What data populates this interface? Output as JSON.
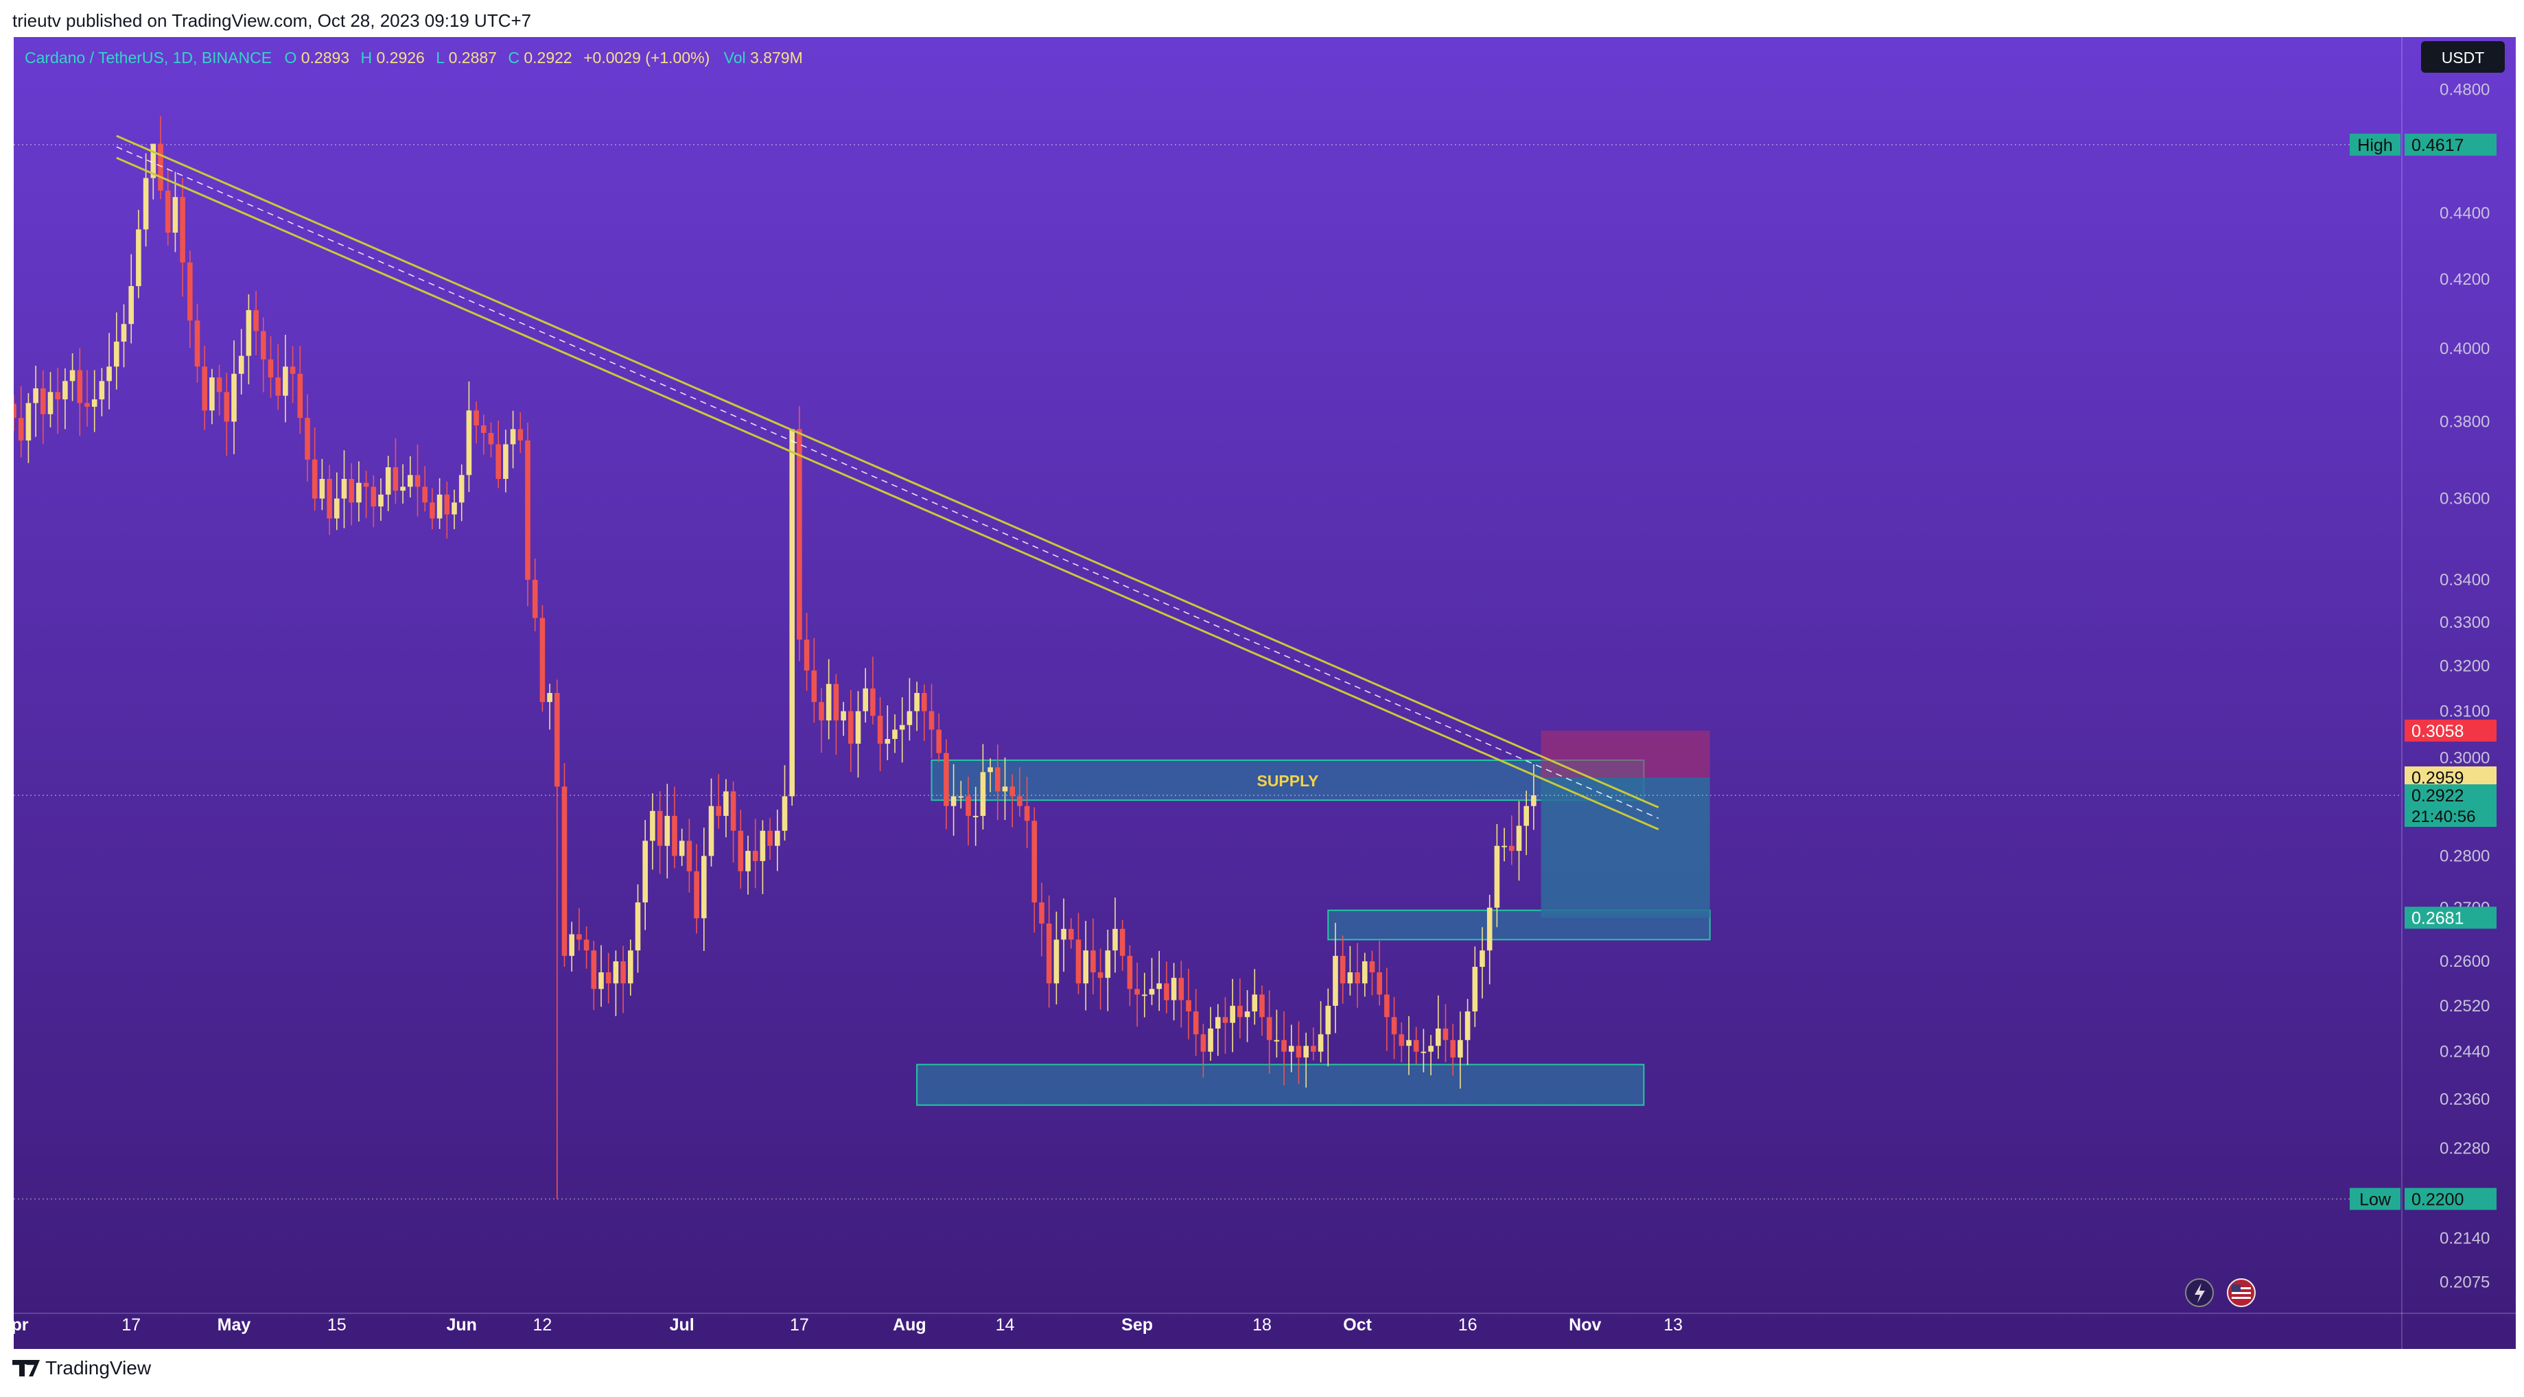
{
  "header": {
    "published_by": "trieutv published on TradingView.com, Oct 28, 2023 09:19 UTC+7"
  },
  "legend": {
    "symbol": "Cardano / TetherUS, 1D, BINANCE",
    "o_label": "O",
    "o_value": "0.2893",
    "h_label": "H",
    "h_value": "0.2926",
    "l_label": "L",
    "l_value": "0.2887",
    "c_label": "C",
    "c_value": "0.2922",
    "change": "+0.0029 (+1.00%)",
    "vol_label": "Vol",
    "vol_value": "3.879M"
  },
  "currency_button": "USDT",
  "footer": {
    "brand": "TradingView"
  },
  "colors": {
    "bg_top": "#6a3bd0",
    "bg_bottom": "#3e1c7a",
    "up": "#f5e08a",
    "down": "#ef5350",
    "trendline": "#c9c93a",
    "zone_fill": "#2e6b9c",
    "zone_stroke": "#22c9a0",
    "target_fill": "#2f6c9c",
    "stop_fill": "#b0306a",
    "price_tag_green": "#22ab94",
    "price_tag_red": "#f23645",
    "price_tag_yellow": "#f5e08a"
  },
  "chart_data": {
    "type": "candlestick",
    "scale": "log",
    "ylim": [
      0.203,
      0.498
    ],
    "y_ticks": [
      "0.4800",
      "0.4400",
      "0.4200",
      "0.4000",
      "0.3800",
      "0.3600",
      "0.3400",
      "0.3300",
      "0.3200",
      "0.3100",
      "0.3000",
      "0.2800",
      "0.2700",
      "0.2600",
      "0.2520",
      "0.2440",
      "0.2360",
      "0.2280",
      "0.2140",
      "0.2075"
    ],
    "x_ticks": [
      {
        "label": "Apr",
        "date": "2023-04-01",
        "bold": true
      },
      {
        "label": "17",
        "date": "2023-04-17",
        "bold": false
      },
      {
        "label": "May",
        "date": "2023-05-01",
        "bold": true
      },
      {
        "label": "15",
        "date": "2023-05-15",
        "bold": false
      },
      {
        "label": "Jun",
        "date": "2023-06-01",
        "bold": true
      },
      {
        "label": "12",
        "date": "2023-06-12",
        "bold": false
      },
      {
        "label": "Jul",
        "date": "2023-07-01",
        "bold": true
      },
      {
        "label": "17",
        "date": "2023-07-17",
        "bold": false
      },
      {
        "label": "Aug",
        "date": "2023-08-01",
        "bold": true
      },
      {
        "label": "14",
        "date": "2023-08-14",
        "bold": false
      },
      {
        "label": "Sep",
        "date": "2023-09-01",
        "bold": true
      },
      {
        "label": "18",
        "date": "2023-09-18",
        "bold": false
      },
      {
        "label": "Oct",
        "date": "2023-10-01",
        "bold": true
      },
      {
        "label": "16",
        "date": "2023-10-16",
        "bold": false
      },
      {
        "label": "Nov",
        "date": "2023-11-01",
        "bold": true
      },
      {
        "label": "13",
        "date": "2023-11-13",
        "bold": false
      }
    ],
    "closes": [
      0.381,
      0.375,
      0.385,
      0.389,
      0.382,
      0.388,
      0.386,
      0.391,
      0.394,
      0.385,
      0.384,
      0.386,
      0.391,
      0.395,
      0.402,
      0.407,
      0.418,
      0.435,
      0.451,
      0.462,
      0.447,
      0.434,
      0.445,
      0.425,
      0.408,
      0.395,
      0.383,
      0.392,
      0.388,
      0.38,
      0.393,
      0.398,
      0.411,
      0.405,
      0.397,
      0.392,
      0.387,
      0.395,
      0.393,
      0.381,
      0.37,
      0.36,
      0.365,
      0.355,
      0.36,
      0.365,
      0.359,
      0.364,
      0.363,
      0.358,
      0.361,
      0.368,
      0.362,
      0.363,
      0.366,
      0.363,
      0.359,
      0.355,
      0.361,
      0.356,
      0.359,
      0.366,
      0.383,
      0.379,
      0.377,
      0.374,
      0.365,
      0.374,
      0.378,
      0.375,
      0.34,
      0.331,
      0.312,
      0.314,
      0.294,
      0.261,
      0.265,
      0.264,
      0.262,
      0.255,
      0.258,
      0.256,
      0.26,
      0.256,
      0.262,
      0.271,
      0.283,
      0.289,
      0.282,
      0.288,
      0.28,
      0.283,
      0.277,
      0.268,
      0.28,
      0.29,
      0.288,
      0.293,
      0.285,
      0.277,
      0.281,
      0.279,
      0.285,
      0.282,
      0.285,
      0.292,
      0.378,
      0.326,
      0.319,
      0.312,
      0.308,
      0.316,
      0.308,
      0.31,
      0.303,
      0.31,
      0.315,
      0.309,
      0.303,
      0.304,
      0.306,
      0.307,
      0.31,
      0.314,
      0.31,
      0.306,
      0.301,
      0.29,
      0.292,
      0.292,
      0.288,
      0.288,
      0.297,
      0.298,
      0.293,
      0.294,
      0.292,
      0.29,
      0.287,
      0.271,
      0.267,
      0.256,
      0.264,
      0.266,
      0.264,
      0.256,
      0.262,
      0.258,
      0.257,
      0.262,
      0.266,
      0.261,
      0.255,
      0.254,
      0.254,
      0.255,
      0.256,
      0.253,
      0.257,
      0.253,
      0.251,
      0.247,
      0.244,
      0.248,
      0.25,
      0.249,
      0.252,
      0.25,
      0.251,
      0.254,
      0.25,
      0.246,
      0.246,
      0.244,
      0.245,
      0.243,
      0.245,
      0.244,
      0.247,
      0.252,
      0.261,
      0.256,
      0.258,
      0.256,
      0.26,
      0.258,
      0.254,
      0.25,
      0.247,
      0.245,
      0.246,
      0.244,
      0.244,
      0.245,
      0.248,
      0.246,
      0.243,
      0.246,
      0.251,
      0.259,
      0.262,
      0.27,
      0.282,
      0.282,
      0.281,
      0.286,
      0.29,
      0.2922
    ],
    "high": 0.4617,
    "low": 0.22,
    "last_price": 0.2922,
    "countdown": "21:40:56",
    "price_labels": [
      {
        "text": "High",
        "value": "0.4617",
        "kind": "high"
      },
      {
        "text": "Low",
        "value": "0.2200",
        "kind": "low"
      },
      {
        "value": "0.3058",
        "kind": "stop"
      },
      {
        "value": "0.2959",
        "kind": "entry"
      },
      {
        "value": "0.2922",
        "kind": "last"
      },
      {
        "value": "0.2681",
        "kind": "target"
      }
    ],
    "trendline": {
      "from": {
        "date": "2023-04-15",
        "price": 0.461
      },
      "to": {
        "date": "2023-11-11",
        "price": 0.2875
      }
    },
    "zones": [
      {
        "label": "SUPPLY",
        "from": "2023-08-04",
        "to": "2023-11-09",
        "top": 0.2995,
        "bottom": 0.2912
      },
      {
        "label": "",
        "from": "2023-09-27",
        "to": "2023-11-18",
        "top": 0.2695,
        "bottom": 0.264
      },
      {
        "label": "",
        "from": "2023-08-02",
        "to": "2023-11-09",
        "top": 0.2418,
        "bottom": 0.235
      }
    ],
    "position": {
      "from": "2023-10-26",
      "to": "2023-11-18",
      "stop": 0.3058,
      "entry": 0.2959,
      "target": 0.2681
    }
  }
}
